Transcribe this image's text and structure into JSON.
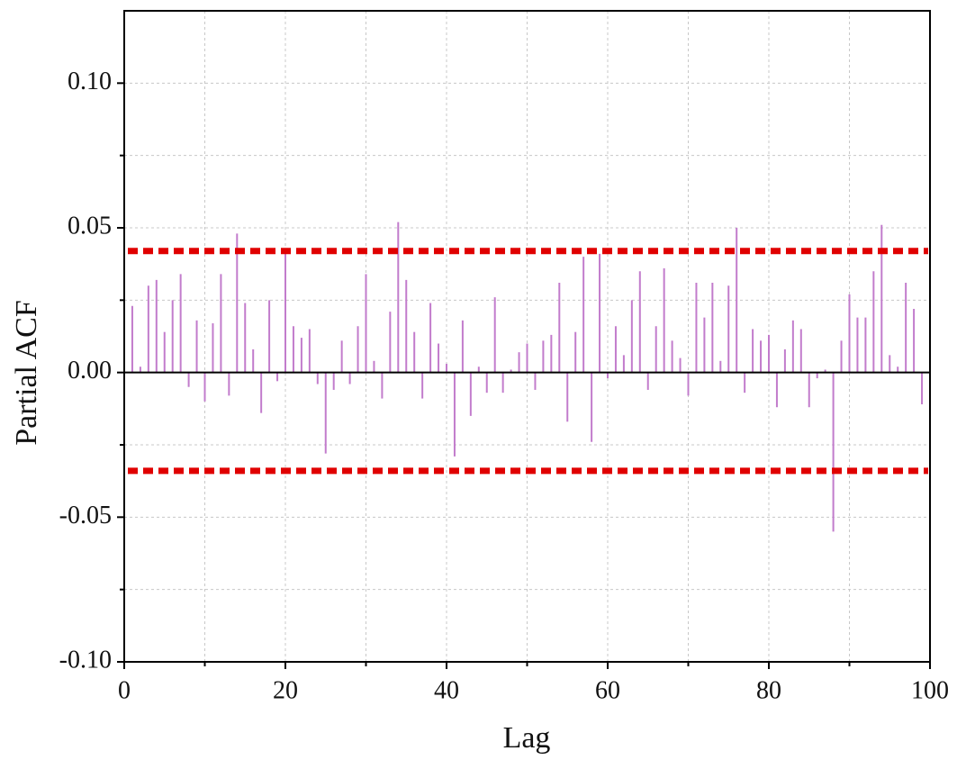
{
  "chart_data": {
    "type": "stem",
    "xlabel": "Lag",
    "ylabel": "Partial ACF",
    "x": [
      1,
      2,
      3,
      4,
      5,
      6,
      7,
      8,
      9,
      10,
      11,
      12,
      13,
      14,
      15,
      16,
      17,
      18,
      19,
      20,
      21,
      22,
      23,
      24,
      25,
      26,
      27,
      28,
      29,
      30,
      31,
      32,
      33,
      34,
      35,
      36,
      37,
      38,
      39,
      40,
      41,
      42,
      43,
      44,
      45,
      46,
      47,
      48,
      49,
      50,
      51,
      52,
      53,
      54,
      55,
      56,
      57,
      58,
      59,
      60,
      61,
      62,
      63,
      64,
      65,
      66,
      67,
      68,
      69,
      70,
      71,
      72,
      73,
      74,
      75,
      76,
      77,
      78,
      79,
      80,
      81,
      82,
      83,
      84,
      85,
      86,
      87,
      88,
      89,
      90,
      91,
      92,
      93,
      94,
      95,
      96,
      97,
      98,
      99,
      100
    ],
    "values": [
      0.023,
      0.002,
      0.03,
      0.032,
      0.014,
      0.025,
      0.034,
      -0.005,
      0.018,
      -0.01,
      0.017,
      0.034,
      -0.008,
      0.048,
      0.024,
      0.008,
      -0.014,
      0.025,
      -0.003,
      0.042,
      0.016,
      0.012,
      0.015,
      -0.004,
      -0.028,
      -0.006,
      0.011,
      -0.004,
      0.016,
      0.034,
      0.004,
      -0.009,
      0.021,
      0.052,
      0.032,
      0.014,
      -0.009,
      0.024,
      0.01,
      0.003,
      -0.029,
      0.018,
      -0.015,
      0.002,
      -0.007,
      0.026,
      -0.007,
      0.001,
      0.007,
      0.01,
      -0.006,
      0.011,
      0.013,
      0.031,
      -0.017,
      0.014,
      0.04,
      -0.024,
      0.041,
      -0.002,
      0.016,
      0.006,
      0.025,
      0.035,
      -0.006,
      0.016,
      0.036,
      0.011,
      0.005,
      -0.008,
      0.031,
      0.019,
      0.031,
      0.004,
      0.03,
      0.05,
      -0.007,
      0.015,
      0.011,
      0.013,
      -0.012,
      0.008,
      0.018,
      0.015,
      -0.012,
      -0.002,
      0.001,
      -0.055,
      0.011,
      0.027,
      0.019,
      0.019,
      0.035,
      0.051,
      0.006,
      0.002,
      0.031,
      0.022,
      -0.011,
      0.009
    ],
    "color": "#c27ccc",
    "hlines": [
      0.042,
      -0.034
    ],
    "hline_color": "#e00000",
    "xlim": [
      0,
      100
    ],
    "xticks": [
      0,
      20,
      40,
      60,
      80,
      100
    ],
    "xminor_ticks": [
      10,
      30,
      50,
      70,
      90
    ],
    "ylim": [
      -0.1,
      0.125
    ],
    "yticks": [
      {
        "value": -0.1,
        "label": "-0.10"
      },
      {
        "value": -0.05,
        "label": "-0.05"
      },
      {
        "value": 0,
        "label": "0.00"
      },
      {
        "value": 0.05,
        "label": "0.05"
      },
      {
        "value": 0.1,
        "label": "0.10"
      }
    ],
    "yminor_ticks": [
      -0.075,
      -0.025,
      0.025,
      0.075
    ],
    "grid": true
  }
}
